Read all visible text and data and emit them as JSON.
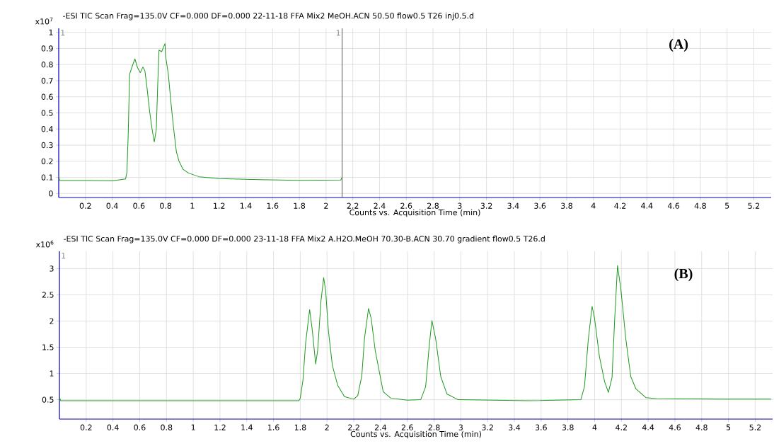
{
  "chart_data": [
    {
      "type": "line",
      "title": "-ESI TIC Scan Frag=135.0V CF=0.000 DF=0.000 22-11-18 FFA Mix2 MeOH.ACN 50.50 flow0.5 T26 inj0.5.d",
      "xlabel": "Counts vs. Acquisition Time (min)",
      "ylabel": "x10$^{7}$",
      "xlim": [
        0,
        5.33
      ],
      "ylim": [
        -0.025,
        1.025
      ],
      "xticks": [
        0.2,
        0.4,
        0.6,
        0.8,
        1,
        1.2,
        1.4,
        1.6,
        1.8,
        2,
        2.2,
        2.4,
        2.6,
        2.8,
        3,
        3.2,
        3.4,
        3.6,
        3.8,
        4,
        4.2,
        4.4,
        4.6,
        4.8,
        5,
        5.2
      ],
      "yticks": [
        0,
        0.1,
        0.2,
        0.3,
        0.4,
        0.5,
        0.6,
        0.7,
        0.8,
        0.9,
        1
      ],
      "grid": true,
      "color": "#1e9a1e",
      "x": [
        0,
        0.01,
        0.2,
        0.4,
        0.5,
        0.51,
        0.52,
        0.53,
        0.55,
        0.57,
        0.59,
        0.61,
        0.63,
        0.645,
        0.66,
        0.68,
        0.7,
        0.715,
        0.73,
        0.74,
        0.75,
        0.77,
        0.785,
        0.795,
        0.8,
        0.82,
        0.84,
        0.86,
        0.88,
        0.9,
        0.93,
        0.97,
        1.05,
        1.2,
        1.5,
        1.8,
        2.11,
        2.12
      ],
      "values": [
        0.1,
        0.08,
        0.08,
        0.078,
        0.09,
        0.13,
        0.37,
        0.74,
        0.79,
        0.835,
        0.78,
        0.75,
        0.785,
        0.76,
        0.66,
        0.51,
        0.39,
        0.32,
        0.4,
        0.66,
        0.89,
        0.88,
        0.91,
        0.93,
        0.85,
        0.74,
        0.56,
        0.4,
        0.26,
        0.2,
        0.15,
        0.127,
        0.104,
        0.093,
        0.086,
        0.081,
        0.084,
        0.1
      ],
      "ref_lines": [
        {
          "axis": "x",
          "value": 2.12,
          "color": "#555555"
        }
      ],
      "annotations": [
        "1",
        "1",
        "(A)"
      ]
    },
    {
      "type": "line",
      "title": "-ESI TIC Scan Frag=135.0V CF=0.000 DF=0.000 23-11-18 FFA Mix2 A.H2O.MeOH 70.30-B.ACN  30.70 gradient flow0.5 T26.d",
      "xlabel": "Counts vs. Acquisition Time (min)",
      "ylabel": "x10$^{6}$",
      "xlim": [
        0,
        5.33
      ],
      "ylim": [
        0.13,
        3.33
      ],
      "xticks": [
        0.2,
        0.4,
        0.6,
        0.8,
        1,
        1.2,
        1.4,
        1.6,
        1.8,
        2,
        2.2,
        2.4,
        2.6,
        2.8,
        3,
        3.2,
        3.4,
        3.6,
        3.8,
        4,
        4.2,
        4.4,
        4.6,
        4.8,
        5,
        5.2
      ],
      "yticks": [
        0.5,
        1,
        1.5,
        2,
        2.5,
        3
      ],
      "grid": true,
      "color": "#1e9a1e",
      "x": [
        0,
        0.01,
        1.0,
        1.79,
        1.8,
        1.82,
        1.84,
        1.87,
        1.89,
        1.915,
        1.93,
        1.955,
        1.975,
        1.99,
        2.01,
        2.04,
        2.08,
        2.13,
        2.2,
        2.23,
        2.26,
        2.28,
        2.31,
        2.33,
        2.36,
        2.42,
        2.476,
        2.6,
        2.7,
        2.737,
        2.765,
        2.784,
        2.812,
        2.85,
        2.896,
        2.98,
        3.5,
        3.897,
        3.924,
        3.953,
        3.981,
        3.999,
        4.036,
        4.075,
        4.103,
        4.13,
        4.149,
        4.171,
        4.196,
        4.233,
        4.27,
        4.308,
        4.383,
        4.46,
        5.0,
        5.32
      ],
      "values": [
        0.55,
        0.48,
        0.48,
        0.48,
        0.53,
        0.87,
        1.58,
        2.22,
        1.82,
        1.18,
        1.44,
        2.39,
        2.83,
        2.57,
        1.82,
        1.15,
        0.77,
        0.56,
        0.51,
        0.58,
        0.96,
        1.67,
        2.24,
        2.05,
        1.44,
        0.65,
        0.53,
        0.49,
        0.5,
        0.75,
        1.56,
        2.01,
        1.66,
        0.94,
        0.61,
        0.5,
        0.48,
        0.5,
        0.75,
        1.66,
        2.28,
        2.06,
        1.32,
        0.84,
        0.64,
        0.92,
        1.99,
        3.06,
        2.61,
        1.66,
        0.94,
        0.71,
        0.54,
        0.52,
        0.51,
        0.51
      ],
      "annotations": [
        "1",
        "(B)"
      ]
    }
  ]
}
